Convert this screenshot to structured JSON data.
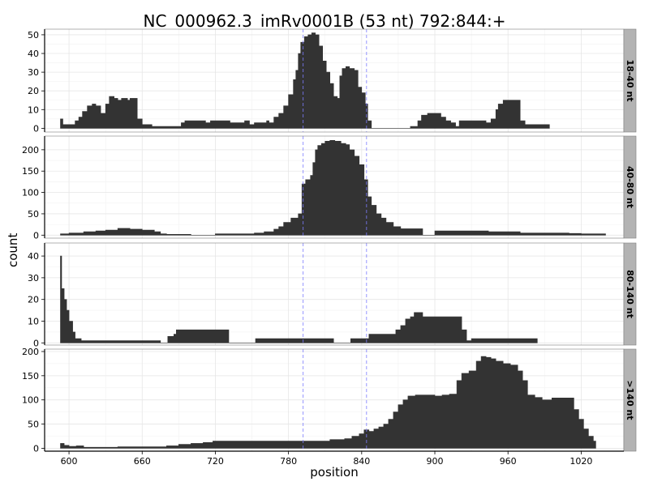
{
  "chart_data": {
    "type": "area",
    "title": "NC_000962.3_imRv0001B (53 nt) 792:844:+",
    "xlabel": "position",
    "ylabel": "count",
    "xlim": [
      580,
      1055
    ],
    "x_ticks": [
      600,
      660,
      720,
      780,
      840,
      900,
      960,
      1020
    ],
    "vlines": [
      792,
      844
    ],
    "vline_color": "#7b7bff",
    "fill_color": "#333333",
    "strip_color": "#b3b3b3",
    "grid": true,
    "panels": [
      {
        "label": "18-40 nt",
        "ylim": [
          -2,
          53
        ],
        "y_ticks": [
          0,
          10,
          20,
          30,
          40,
          50
        ],
        "points": [
          [
            593,
            5
          ],
          [
            595,
            2
          ],
          [
            603,
            2
          ],
          [
            605,
            4
          ],
          [
            608,
            6
          ],
          [
            611,
            9
          ],
          [
            615,
            12
          ],
          [
            619,
            13
          ],
          [
            622,
            12
          ],
          [
            626,
            8
          ],
          [
            630,
            13
          ],
          [
            633,
            17
          ],
          [
            637,
            16
          ],
          [
            640,
            15
          ],
          [
            643,
            16
          ],
          [
            646,
            16
          ],
          [
            648,
            15
          ],
          [
            650,
            16
          ],
          [
            654,
            16
          ],
          [
            656,
            5
          ],
          [
            660,
            2
          ],
          [
            668,
            1
          ],
          [
            681,
            1
          ],
          [
            688,
            1
          ],
          [
            692,
            3
          ],
          [
            695,
            4
          ],
          [
            702,
            4
          ],
          [
            708,
            4
          ],
          [
            712,
            3
          ],
          [
            716,
            4
          ],
          [
            722,
            4
          ],
          [
            732,
            3
          ],
          [
            738,
            3
          ],
          [
            744,
            4
          ],
          [
            748,
            2
          ],
          [
            752,
            3
          ],
          [
            758,
            3
          ],
          [
            762,
            4
          ],
          [
            764,
            3
          ],
          [
            768,
            6
          ],
          [
            772,
            8
          ],
          [
            776,
            12
          ],
          [
            780,
            18
          ],
          [
            784,
            26
          ],
          [
            786,
            31
          ],
          [
            788,
            40
          ],
          [
            790,
            46
          ],
          [
            793,
            49
          ],
          [
            796,
            50
          ],
          [
            799,
            51
          ],
          [
            802,
            50
          ],
          [
            805,
            44
          ],
          [
            808,
            36
          ],
          [
            811,
            30
          ],
          [
            814,
            24
          ],
          [
            817,
            17
          ],
          [
            820,
            16
          ],
          [
            822,
            28
          ],
          [
            824,
            32
          ],
          [
            827,
            33
          ],
          [
            830,
            32
          ],
          [
            834,
            31
          ],
          [
            837,
            22
          ],
          [
            840,
            19
          ],
          [
            843,
            13
          ],
          [
            845,
            4
          ],
          [
            848,
            0
          ],
          [
            853,
            0
          ],
          [
            873,
            0
          ],
          [
            876,
            0
          ],
          [
            880,
            1
          ],
          [
            886,
            4
          ],
          [
            889,
            7
          ],
          [
            894,
            8
          ],
          [
            900,
            8
          ],
          [
            905,
            6
          ],
          [
            909,
            4
          ],
          [
            913,
            3
          ],
          [
            917,
            1
          ],
          [
            920,
            4
          ],
          [
            925,
            4
          ],
          [
            929,
            4
          ],
          [
            934,
            4
          ],
          [
            938,
            4
          ],
          [
            942,
            3
          ],
          [
            946,
            5
          ],
          [
            950,
            10
          ],
          [
            952,
            13
          ],
          [
            956,
            15
          ],
          [
            960,
            15
          ],
          [
            966,
            15
          ],
          [
            970,
            4
          ],
          [
            974,
            2
          ],
          [
            978,
            2
          ],
          [
            984,
            2
          ],
          [
            990,
            2
          ],
          [
            994,
            1
          ]
        ]
      },
      {
        "label": "40-80 nt",
        "ylim": [
          -7,
          232
        ],
        "y_ticks": [
          0,
          50,
          100,
          150,
          200
        ],
        "points": [
          [
            593,
            3
          ],
          [
            600,
            5
          ],
          [
            612,
            8
          ],
          [
            622,
            10
          ],
          [
            630,
            12
          ],
          [
            640,
            16
          ],
          [
            650,
            14
          ],
          [
            660,
            12
          ],
          [
            670,
            8
          ],
          [
            675,
            3
          ],
          [
            680,
            2
          ],
          [
            700,
            0
          ],
          [
            720,
            3
          ],
          [
            738,
            3
          ],
          [
            752,
            5
          ],
          [
            760,
            8
          ],
          [
            768,
            14
          ],
          [
            772,
            20
          ],
          [
            776,
            30
          ],
          [
            782,
            40
          ],
          [
            788,
            50
          ],
          [
            791,
            120
          ],
          [
            794,
            130
          ],
          [
            798,
            140
          ],
          [
            800,
            170
          ],
          [
            802,
            200
          ],
          [
            804,
            210
          ],
          [
            807,
            215
          ],
          [
            810,
            220
          ],
          [
            814,
            222
          ],
          [
            818,
            220
          ],
          [
            823,
            215
          ],
          [
            827,
            212
          ],
          [
            830,
            200
          ],
          [
            834,
            185
          ],
          [
            838,
            165
          ],
          [
            842,
            130
          ],
          [
            845,
            90
          ],
          [
            848,
            70
          ],
          [
            852,
            50
          ],
          [
            856,
            40
          ],
          [
            860,
            30
          ],
          [
            866,
            20
          ],
          [
            872,
            15
          ],
          [
            882,
            15
          ],
          [
            887,
            15
          ],
          [
            890,
            0
          ],
          [
            893,
            0
          ],
          [
            900,
            10
          ],
          [
            920,
            10
          ],
          [
            936,
            10
          ],
          [
            944,
            8
          ],
          [
            960,
            8
          ],
          [
            970,
            5
          ],
          [
            982,
            5
          ],
          [
            1000,
            5
          ],
          [
            1010,
            4
          ],
          [
            1020,
            3
          ],
          [
            1030,
            3
          ],
          [
            1040,
            3
          ]
        ]
      },
      {
        "label": "80-140 nt",
        "ylim": [
          -1,
          46
        ],
        "y_ticks": [
          0,
          10,
          20,
          30,
          40
        ],
        "points": [
          [
            593,
            40
          ],
          [
            594,
            25
          ],
          [
            596,
            20
          ],
          [
            598,
            15
          ],
          [
            600,
            10
          ],
          [
            603,
            5
          ],
          [
            605,
            2
          ],
          [
            610,
            1
          ],
          [
            620,
            1
          ],
          [
            640,
            1
          ],
          [
            660,
            1
          ],
          [
            672,
            1
          ],
          [
            675,
            0
          ],
          [
            678,
            0
          ],
          [
            681,
            3
          ],
          [
            686,
            4
          ],
          [
            688,
            6
          ],
          [
            700,
            6
          ],
          [
            716,
            6
          ],
          [
            728,
            6
          ],
          [
            731,
            0
          ],
          [
            740,
            0
          ],
          [
            753,
            2
          ],
          [
            760,
            2
          ],
          [
            780,
            2
          ],
          [
            800,
            2
          ],
          [
            814,
            2
          ],
          [
            817,
            0
          ],
          [
            828,
            0
          ],
          [
            831,
            2
          ],
          [
            846,
            4
          ],
          [
            860,
            4
          ],
          [
            868,
            6
          ],
          [
            872,
            8
          ],
          [
            876,
            11
          ],
          [
            880,
            12
          ],
          [
            883,
            14
          ],
          [
            886,
            14
          ],
          [
            890,
            12
          ],
          [
            900,
            12
          ],
          [
            912,
            12
          ],
          [
            918,
            12
          ],
          [
            922,
            6
          ],
          [
            926,
            1
          ],
          [
            930,
            2
          ],
          [
            940,
            2
          ],
          [
            950,
            2
          ],
          [
            970,
            2
          ],
          [
            980,
            2
          ],
          [
            984,
            0
          ]
        ]
      },
      {
        "label": ">140 nt",
        "ylim": [
          -6,
          205
        ],
        "y_ticks": [
          0,
          50,
          100,
          150,
          200
        ],
        "points": [
          [
            593,
            10
          ],
          [
            596,
            6
          ],
          [
            600,
            4
          ],
          [
            606,
            5
          ],
          [
            612,
            2
          ],
          [
            628,
            2
          ],
          [
            640,
            3
          ],
          [
            660,
            3
          ],
          [
            672,
            3
          ],
          [
            680,
            5
          ],
          [
            690,
            8
          ],
          [
            700,
            10
          ],
          [
            710,
            12
          ],
          [
            718,
            15
          ],
          [
            726,
            15
          ],
          [
            740,
            15
          ],
          [
            756,
            15
          ],
          [
            770,
            15
          ],
          [
            780,
            15
          ],
          [
            790,
            15
          ],
          [
            800,
            15
          ],
          [
            814,
            18
          ],
          [
            820,
            18
          ],
          [
            826,
            20
          ],
          [
            832,
            25
          ],
          [
            838,
            30
          ],
          [
            842,
            38
          ],
          [
            846,
            35
          ],
          [
            850,
            40
          ],
          [
            854,
            44
          ],
          [
            858,
            50
          ],
          [
            862,
            60
          ],
          [
            866,
            75
          ],
          [
            870,
            90
          ],
          [
            874,
            100
          ],
          [
            878,
            108
          ],
          [
            884,
            110
          ],
          [
            890,
            110
          ],
          [
            900,
            108
          ],
          [
            906,
            110
          ],
          [
            912,
            112
          ],
          [
            918,
            140
          ],
          [
            922,
            155
          ],
          [
            928,
            160
          ],
          [
            934,
            180
          ],
          [
            938,
            190
          ],
          [
            942,
            188
          ],
          [
            946,
            185
          ],
          [
            950,
            180
          ],
          [
            956,
            175
          ],
          [
            962,
            172
          ],
          [
            968,
            160
          ],
          [
            972,
            140
          ],
          [
            976,
            110
          ],
          [
            982,
            105
          ],
          [
            988,
            100
          ],
          [
            996,
            104
          ],
          [
            1004,
            104
          ],
          [
            1010,
            104
          ],
          [
            1014,
            80
          ],
          [
            1018,
            60
          ],
          [
            1022,
            40
          ],
          [
            1026,
            25
          ],
          [
            1030,
            15
          ],
          [
            1032,
            0
          ]
        ]
      }
    ]
  }
}
